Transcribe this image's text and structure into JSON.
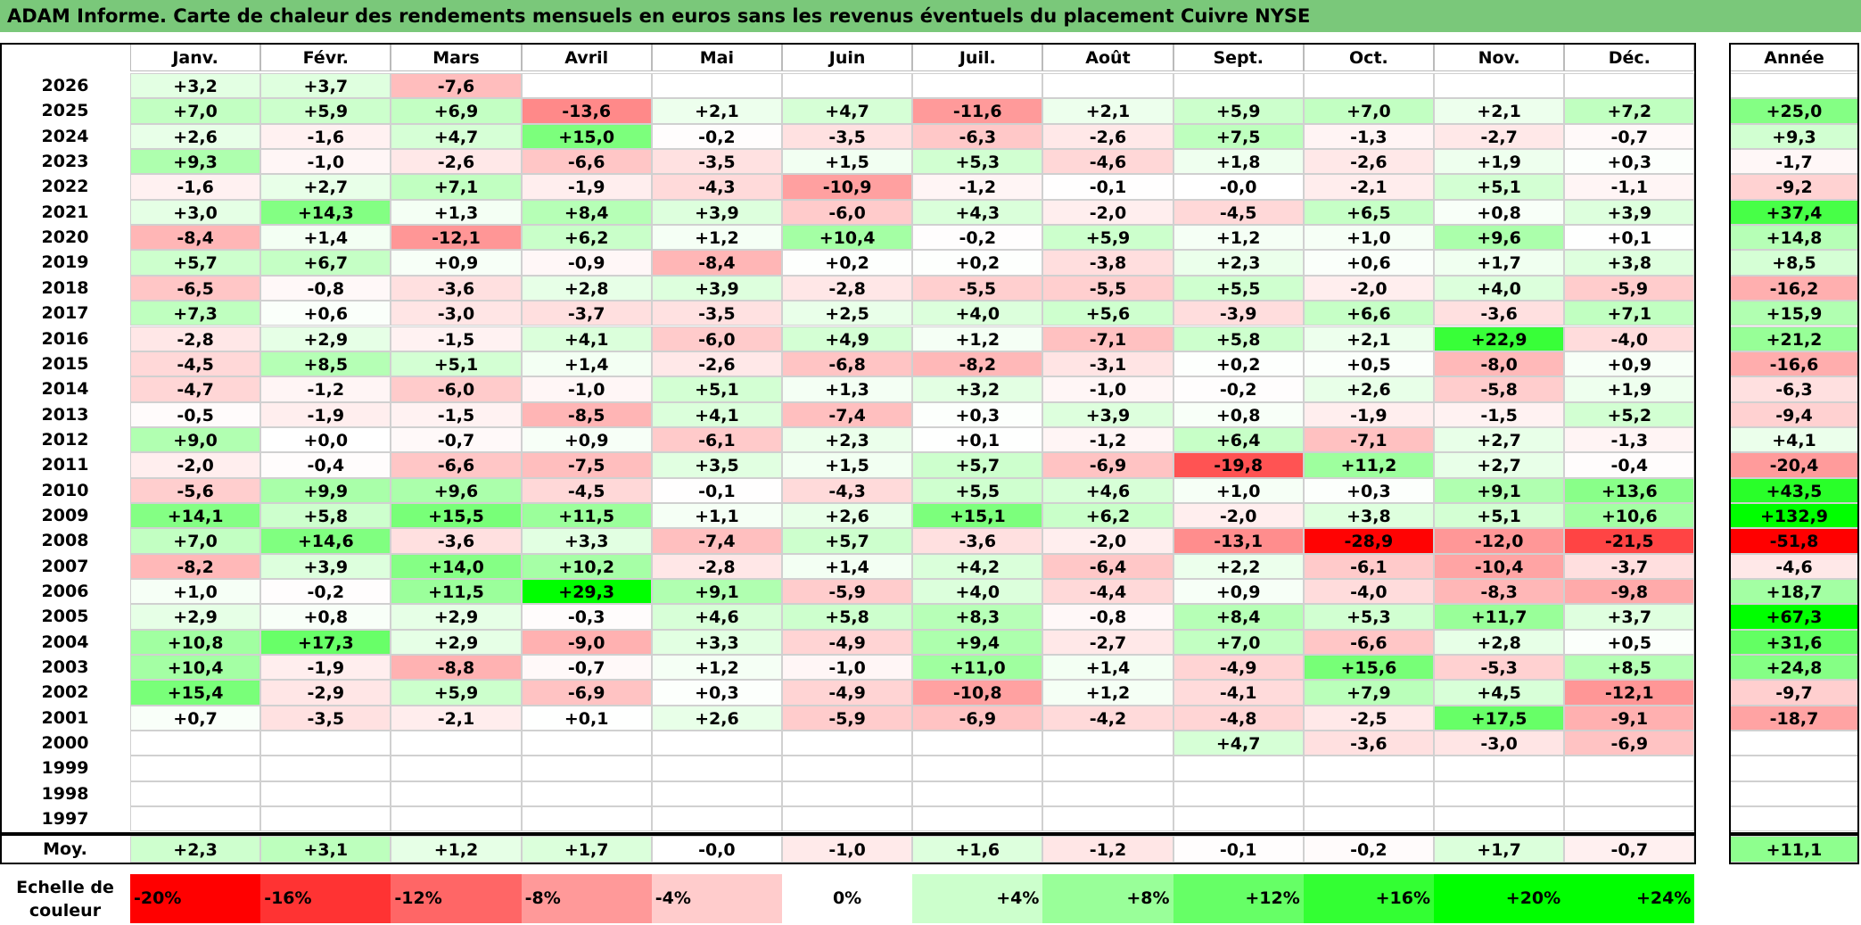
{
  "title": "ADAM Informe. Carte de chaleur des rendements mensuels en euros sans les revenus éventuels du placement Cuivre NYSE",
  "colors": {
    "title_bg": "#7ac87a",
    "neg_max": "#ff0000",
    "neutral": "#ffffff",
    "pos_max": "#00ff00"
  },
  "chart_data": {
    "type": "heatmap",
    "title": "ADAM Informe. Carte de chaleur des rendements mensuels en euros sans les revenus éventuels du placement Cuivre NYSE",
    "columns": [
      "Janv.",
      "Févr.",
      "Mars",
      "Avril",
      "Mai",
      "Juin",
      "Juil.",
      "Août",
      "Sept.",
      "Oct.",
      "Nov.",
      "Déc."
    ],
    "annual_label": "Année",
    "rows": [
      {
        "year": "2026",
        "values": [
          "+3,2",
          "+3,7",
          "-7,6",
          "",
          "",
          "",
          "",
          "",
          "",
          "",
          "",
          ""
        ],
        "annual": ""
      },
      {
        "year": "2025",
        "values": [
          "+7,0",
          "+5,9",
          "+6,9",
          "-13,6",
          "+2,1",
          "+4,7",
          "-11,6",
          "+2,1",
          "+5,9",
          "+7,0",
          "+2,1",
          "+7,2"
        ],
        "annual": "+25,0"
      },
      {
        "year": "2024",
        "values": [
          "+2,6",
          "-1,6",
          "+4,7",
          "+15,0",
          "-0,2",
          "-3,5",
          "-6,3",
          "-2,6",
          "+7,5",
          "-1,3",
          "-2,7",
          "-0,7"
        ],
        "annual": "+9,3"
      },
      {
        "year": "2023",
        "values": [
          "+9,3",
          "-1,0",
          "-2,6",
          "-6,6",
          "-3,5",
          "+1,5",
          "+5,3",
          "-4,6",
          "+1,8",
          "-2,6",
          "+1,9",
          "+0,3"
        ],
        "annual": "-1,7"
      },
      {
        "year": "2022",
        "values": [
          "-1,6",
          "+2,7",
          "+7,1",
          "-1,9",
          "-4,3",
          "-10,9",
          "-1,2",
          "-0,1",
          "-0,0",
          "-2,1",
          "+5,1",
          "-1,1"
        ],
        "annual": "-9,2"
      },
      {
        "year": "2021",
        "values": [
          "+3,0",
          "+14,3",
          "+1,3",
          "+8,4",
          "+3,9",
          "-6,0",
          "+4,3",
          "-2,0",
          "-4,5",
          "+6,5",
          "+0,8",
          "+3,9"
        ],
        "annual": "+37,4"
      },
      {
        "year": "2020",
        "values": [
          "-8,4",
          "+1,4",
          "-12,1",
          "+6,2",
          "+1,2",
          "+10,4",
          "-0,2",
          "+5,9",
          "+1,2",
          "+1,0",
          "+9,6",
          "+0,1"
        ],
        "annual": "+14,8"
      },
      {
        "year": "2019",
        "values": [
          "+5,7",
          "+6,7",
          "+0,9",
          "-0,9",
          "-8,4",
          "+0,2",
          "+0,2",
          "-3,8",
          "+2,3",
          "+0,6",
          "+1,7",
          "+3,8"
        ],
        "annual": "+8,5"
      },
      {
        "year": "2018",
        "values": [
          "-6,5",
          "-0,8",
          "-3,6",
          "+2,8",
          "+3,9",
          "-2,8",
          "-5,5",
          "-5,5",
          "+5,5",
          "-2,0",
          "+4,0",
          "-5,9"
        ],
        "annual": "-16,2"
      },
      {
        "year": "2017",
        "values": [
          "+7,3",
          "+0,6",
          "-3,0",
          "-3,7",
          "-3,5",
          "+2,5",
          "+4,0",
          "+5,6",
          "-3,9",
          "+6,6",
          "-3,6",
          "+7,1"
        ],
        "annual": "+15,9"
      },
      {
        "year": "2016",
        "values": [
          "-2,8",
          "+2,9",
          "-1,5",
          "+4,1",
          "-6,0",
          "+4,9",
          "+1,2",
          "-7,1",
          "+5,8",
          "+2,1",
          "+22,9",
          "-4,0"
        ],
        "annual": "+21,2"
      },
      {
        "year": "2015",
        "values": [
          "-4,5",
          "+8,5",
          "+5,1",
          "+1,4",
          "-2,6",
          "-6,8",
          "-8,2",
          "-3,1",
          "+0,2",
          "+0,5",
          "-8,0",
          "+0,9"
        ],
        "annual": "-16,6"
      },
      {
        "year": "2014",
        "values": [
          "-4,7",
          "-1,2",
          "-6,0",
          "-1,0",
          "+5,1",
          "+1,3",
          "+3,2",
          "-1,0",
          "-0,2",
          "+2,6",
          "-5,8",
          "+1,9"
        ],
        "annual": "-6,3"
      },
      {
        "year": "2013",
        "values": [
          "-0,5",
          "-1,9",
          "-1,5",
          "-8,5",
          "+4,1",
          "-7,4",
          "+0,3",
          "+3,9",
          "+0,8",
          "-1,9",
          "-1,5",
          "+5,2"
        ],
        "annual": "-9,4"
      },
      {
        "year": "2012",
        "values": [
          "+9,0",
          "+0,0",
          "-0,7",
          "+0,9",
          "-6,1",
          "+2,3",
          "+0,1",
          "-1,2",
          "+6,4",
          "-7,1",
          "+2,7",
          "-1,3"
        ],
        "annual": "+4,1"
      },
      {
        "year": "2011",
        "values": [
          "-2,0",
          "-0,4",
          "-6,6",
          "-7,5",
          "+3,5",
          "+1,5",
          "+5,7",
          "-6,9",
          "-19,8",
          "+11,2",
          "+2,7",
          "-0,4"
        ],
        "annual": "-20,4"
      },
      {
        "year": "2010",
        "values": [
          "-5,6",
          "+9,9",
          "+9,6",
          "-4,5",
          "-0,1",
          "-4,3",
          "+5,5",
          "+4,6",
          "+1,0",
          "+0,3",
          "+9,1",
          "+13,6"
        ],
        "annual": "+43,5"
      },
      {
        "year": "2009",
        "values": [
          "+14,1",
          "+5,8",
          "+15,5",
          "+11,5",
          "+1,1",
          "+2,6",
          "+15,1",
          "+6,2",
          "-2,0",
          "+3,8",
          "+5,1",
          "+10,6"
        ],
        "annual": "+132,9"
      },
      {
        "year": "2008",
        "values": [
          "+7,0",
          "+14,6",
          "-3,6",
          "+3,3",
          "-7,4",
          "+5,7",
          "-3,6",
          "-2,0",
          "-13,1",
          "-28,9",
          "-12,0",
          "-21,5"
        ],
        "annual": "-51,8"
      },
      {
        "year": "2007",
        "values": [
          "-8,2",
          "+3,9",
          "+14,0",
          "+10,2",
          "-2,8",
          "+1,4",
          "+4,2",
          "-6,4",
          "+2,2",
          "-6,1",
          "-10,4",
          "-3,7"
        ],
        "annual": "-4,6"
      },
      {
        "year": "2006",
        "values": [
          "+1,0",
          "-0,2",
          "+11,5",
          "+29,3",
          "+9,1",
          "-5,9",
          "+4,0",
          "-4,4",
          "+0,9",
          "-4,0",
          "-8,3",
          "-9,8"
        ],
        "annual": "+18,7"
      },
      {
        "year": "2005",
        "values": [
          "+2,9",
          "+0,8",
          "+2,9",
          "-0,3",
          "+4,6",
          "+5,8",
          "+8,3",
          "-0,8",
          "+8,4",
          "+5,3",
          "+11,7",
          "+3,7"
        ],
        "annual": "+67,3"
      },
      {
        "year": "2004",
        "values": [
          "+10,8",
          "+17,3",
          "+2,9",
          "-9,0",
          "+3,3",
          "-4,9",
          "+9,4",
          "-2,7",
          "+7,0",
          "-6,6",
          "+2,8",
          "+0,5"
        ],
        "annual": "+31,6"
      },
      {
        "year": "2003",
        "values": [
          "+10,4",
          "-1,9",
          "-8,8",
          "-0,7",
          "+1,2",
          "-1,0",
          "+11,0",
          "+1,4",
          "-4,9",
          "+15,6",
          "-5,3",
          "+8,5"
        ],
        "annual": "+24,8"
      },
      {
        "year": "2002",
        "values": [
          "+15,4",
          "-2,9",
          "+5,9",
          "-6,9",
          "+0,3",
          "-4,9",
          "-10,8",
          "+1,2",
          "-4,1",
          "+7,9",
          "+4,5",
          "-12,1"
        ],
        "annual": "-9,7"
      },
      {
        "year": "2001",
        "values": [
          "+0,7",
          "-3,5",
          "-2,1",
          "+0,1",
          "+2,6",
          "-5,9",
          "-6,9",
          "-4,2",
          "-4,8",
          "-2,5",
          "+17,5",
          "-9,1"
        ],
        "annual": "-18,7"
      },
      {
        "year": "2000",
        "values": [
          "",
          "",
          "",
          "",
          "",
          "",
          "",
          "",
          "+4,7",
          "-3,6",
          "-3,0",
          "-6,9"
        ],
        "annual": ""
      },
      {
        "year": "1999",
        "values": [
          "",
          "",
          "",
          "",
          "",
          "",
          "",
          "",
          "",
          "",
          "",
          ""
        ],
        "annual": ""
      },
      {
        "year": "1998",
        "values": [
          "",
          "",
          "",
          "",
          "",
          "",
          "",
          "",
          "",
          "",
          "",
          ""
        ],
        "annual": ""
      },
      {
        "year": "1997",
        "values": [
          "",
          "",
          "",
          "",
          "",
          "",
          "",
          "",
          "",
          "",
          "",
          ""
        ],
        "annual": ""
      }
    ],
    "average": {
      "label": "Moy.",
      "values": [
        "+2,3",
        "+3,1",
        "+1,2",
        "+1,7",
        "-0,0",
        "-1,0",
        "+1,6",
        "-1,2",
        "-0,1",
        "-0,2",
        "+1,7",
        "-0,7"
      ],
      "annual": "+11,1"
    },
    "color_scale": {
      "label": "Echelle de couleur",
      "stops": [
        "-20%",
        "-16%",
        "-12%",
        "-8%",
        "-4%",
        "0%",
        "+4%",
        "+8%",
        "+12%",
        "+16%",
        "+20%",
        "+24%"
      ]
    }
  }
}
